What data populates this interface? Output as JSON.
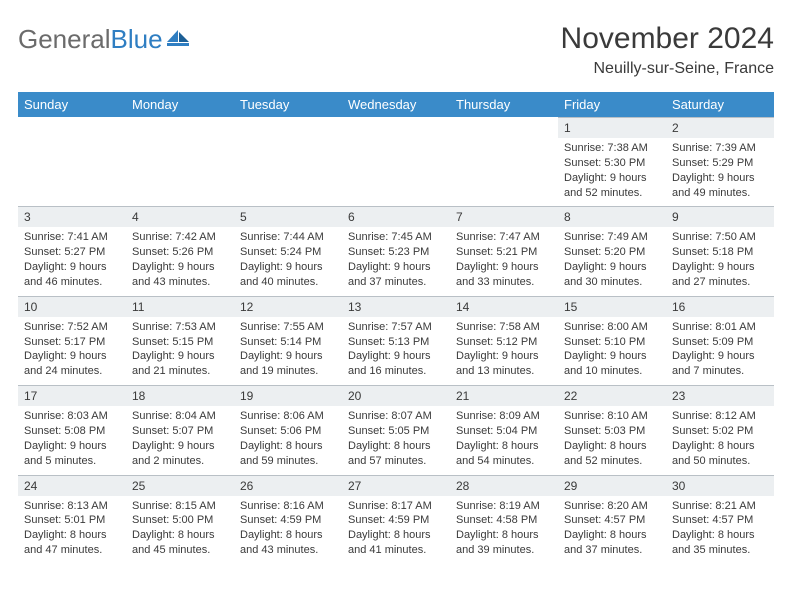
{
  "brand": {
    "word1": "General",
    "word2": "Blue"
  },
  "title": "November 2024",
  "location": "Neuilly-sur-Seine, France",
  "colors": {
    "header_bg": "#3a8bc9",
    "header_text": "#ffffff",
    "daynum_bg": "#eceff1",
    "text": "#3a3a3a",
    "logo_gray": "#6b6b6b",
    "logo_blue": "#2f7ec2",
    "divider": "#b9c0c6"
  },
  "dow": [
    "Sunday",
    "Monday",
    "Tuesday",
    "Wednesday",
    "Thursday",
    "Friday",
    "Saturday"
  ],
  "weeks": [
    [
      null,
      null,
      null,
      null,
      null,
      {
        "n": "1",
        "sr": "Sunrise: 7:38 AM",
        "ss": "Sunset: 5:30 PM",
        "d1": "Daylight: 9 hours",
        "d2": "and 52 minutes."
      },
      {
        "n": "2",
        "sr": "Sunrise: 7:39 AM",
        "ss": "Sunset: 5:29 PM",
        "d1": "Daylight: 9 hours",
        "d2": "and 49 minutes."
      }
    ],
    [
      {
        "n": "3",
        "sr": "Sunrise: 7:41 AM",
        "ss": "Sunset: 5:27 PM",
        "d1": "Daylight: 9 hours",
        "d2": "and 46 minutes."
      },
      {
        "n": "4",
        "sr": "Sunrise: 7:42 AM",
        "ss": "Sunset: 5:26 PM",
        "d1": "Daylight: 9 hours",
        "d2": "and 43 minutes."
      },
      {
        "n": "5",
        "sr": "Sunrise: 7:44 AM",
        "ss": "Sunset: 5:24 PM",
        "d1": "Daylight: 9 hours",
        "d2": "and 40 minutes."
      },
      {
        "n": "6",
        "sr": "Sunrise: 7:45 AM",
        "ss": "Sunset: 5:23 PM",
        "d1": "Daylight: 9 hours",
        "d2": "and 37 minutes."
      },
      {
        "n": "7",
        "sr": "Sunrise: 7:47 AM",
        "ss": "Sunset: 5:21 PM",
        "d1": "Daylight: 9 hours",
        "d2": "and 33 minutes."
      },
      {
        "n": "8",
        "sr": "Sunrise: 7:49 AM",
        "ss": "Sunset: 5:20 PM",
        "d1": "Daylight: 9 hours",
        "d2": "and 30 minutes."
      },
      {
        "n": "9",
        "sr": "Sunrise: 7:50 AM",
        "ss": "Sunset: 5:18 PM",
        "d1": "Daylight: 9 hours",
        "d2": "and 27 minutes."
      }
    ],
    [
      {
        "n": "10",
        "sr": "Sunrise: 7:52 AM",
        "ss": "Sunset: 5:17 PM",
        "d1": "Daylight: 9 hours",
        "d2": "and 24 minutes."
      },
      {
        "n": "11",
        "sr": "Sunrise: 7:53 AM",
        "ss": "Sunset: 5:15 PM",
        "d1": "Daylight: 9 hours",
        "d2": "and 21 minutes."
      },
      {
        "n": "12",
        "sr": "Sunrise: 7:55 AM",
        "ss": "Sunset: 5:14 PM",
        "d1": "Daylight: 9 hours",
        "d2": "and 19 minutes."
      },
      {
        "n": "13",
        "sr": "Sunrise: 7:57 AM",
        "ss": "Sunset: 5:13 PM",
        "d1": "Daylight: 9 hours",
        "d2": "and 16 minutes."
      },
      {
        "n": "14",
        "sr": "Sunrise: 7:58 AM",
        "ss": "Sunset: 5:12 PM",
        "d1": "Daylight: 9 hours",
        "d2": "and 13 minutes."
      },
      {
        "n": "15",
        "sr": "Sunrise: 8:00 AM",
        "ss": "Sunset: 5:10 PM",
        "d1": "Daylight: 9 hours",
        "d2": "and 10 minutes."
      },
      {
        "n": "16",
        "sr": "Sunrise: 8:01 AM",
        "ss": "Sunset: 5:09 PM",
        "d1": "Daylight: 9 hours",
        "d2": "and 7 minutes."
      }
    ],
    [
      {
        "n": "17",
        "sr": "Sunrise: 8:03 AM",
        "ss": "Sunset: 5:08 PM",
        "d1": "Daylight: 9 hours",
        "d2": "and 5 minutes."
      },
      {
        "n": "18",
        "sr": "Sunrise: 8:04 AM",
        "ss": "Sunset: 5:07 PM",
        "d1": "Daylight: 9 hours",
        "d2": "and 2 minutes."
      },
      {
        "n": "19",
        "sr": "Sunrise: 8:06 AM",
        "ss": "Sunset: 5:06 PM",
        "d1": "Daylight: 8 hours",
        "d2": "and 59 minutes."
      },
      {
        "n": "20",
        "sr": "Sunrise: 8:07 AM",
        "ss": "Sunset: 5:05 PM",
        "d1": "Daylight: 8 hours",
        "d2": "and 57 minutes."
      },
      {
        "n": "21",
        "sr": "Sunrise: 8:09 AM",
        "ss": "Sunset: 5:04 PM",
        "d1": "Daylight: 8 hours",
        "d2": "and 54 minutes."
      },
      {
        "n": "22",
        "sr": "Sunrise: 8:10 AM",
        "ss": "Sunset: 5:03 PM",
        "d1": "Daylight: 8 hours",
        "d2": "and 52 minutes."
      },
      {
        "n": "23",
        "sr": "Sunrise: 8:12 AM",
        "ss": "Sunset: 5:02 PM",
        "d1": "Daylight: 8 hours",
        "d2": "and 50 minutes."
      }
    ],
    [
      {
        "n": "24",
        "sr": "Sunrise: 8:13 AM",
        "ss": "Sunset: 5:01 PM",
        "d1": "Daylight: 8 hours",
        "d2": "and 47 minutes."
      },
      {
        "n": "25",
        "sr": "Sunrise: 8:15 AM",
        "ss": "Sunset: 5:00 PM",
        "d1": "Daylight: 8 hours",
        "d2": "and 45 minutes."
      },
      {
        "n": "26",
        "sr": "Sunrise: 8:16 AM",
        "ss": "Sunset: 4:59 PM",
        "d1": "Daylight: 8 hours",
        "d2": "and 43 minutes."
      },
      {
        "n": "27",
        "sr": "Sunrise: 8:17 AM",
        "ss": "Sunset: 4:59 PM",
        "d1": "Daylight: 8 hours",
        "d2": "and 41 minutes."
      },
      {
        "n": "28",
        "sr": "Sunrise: 8:19 AM",
        "ss": "Sunset: 4:58 PM",
        "d1": "Daylight: 8 hours",
        "d2": "and 39 minutes."
      },
      {
        "n": "29",
        "sr": "Sunrise: 8:20 AM",
        "ss": "Sunset: 4:57 PM",
        "d1": "Daylight: 8 hours",
        "d2": "and 37 minutes."
      },
      {
        "n": "30",
        "sr": "Sunrise: 8:21 AM",
        "ss": "Sunset: 4:57 PM",
        "d1": "Daylight: 8 hours",
        "d2": "and 35 minutes."
      }
    ]
  ]
}
